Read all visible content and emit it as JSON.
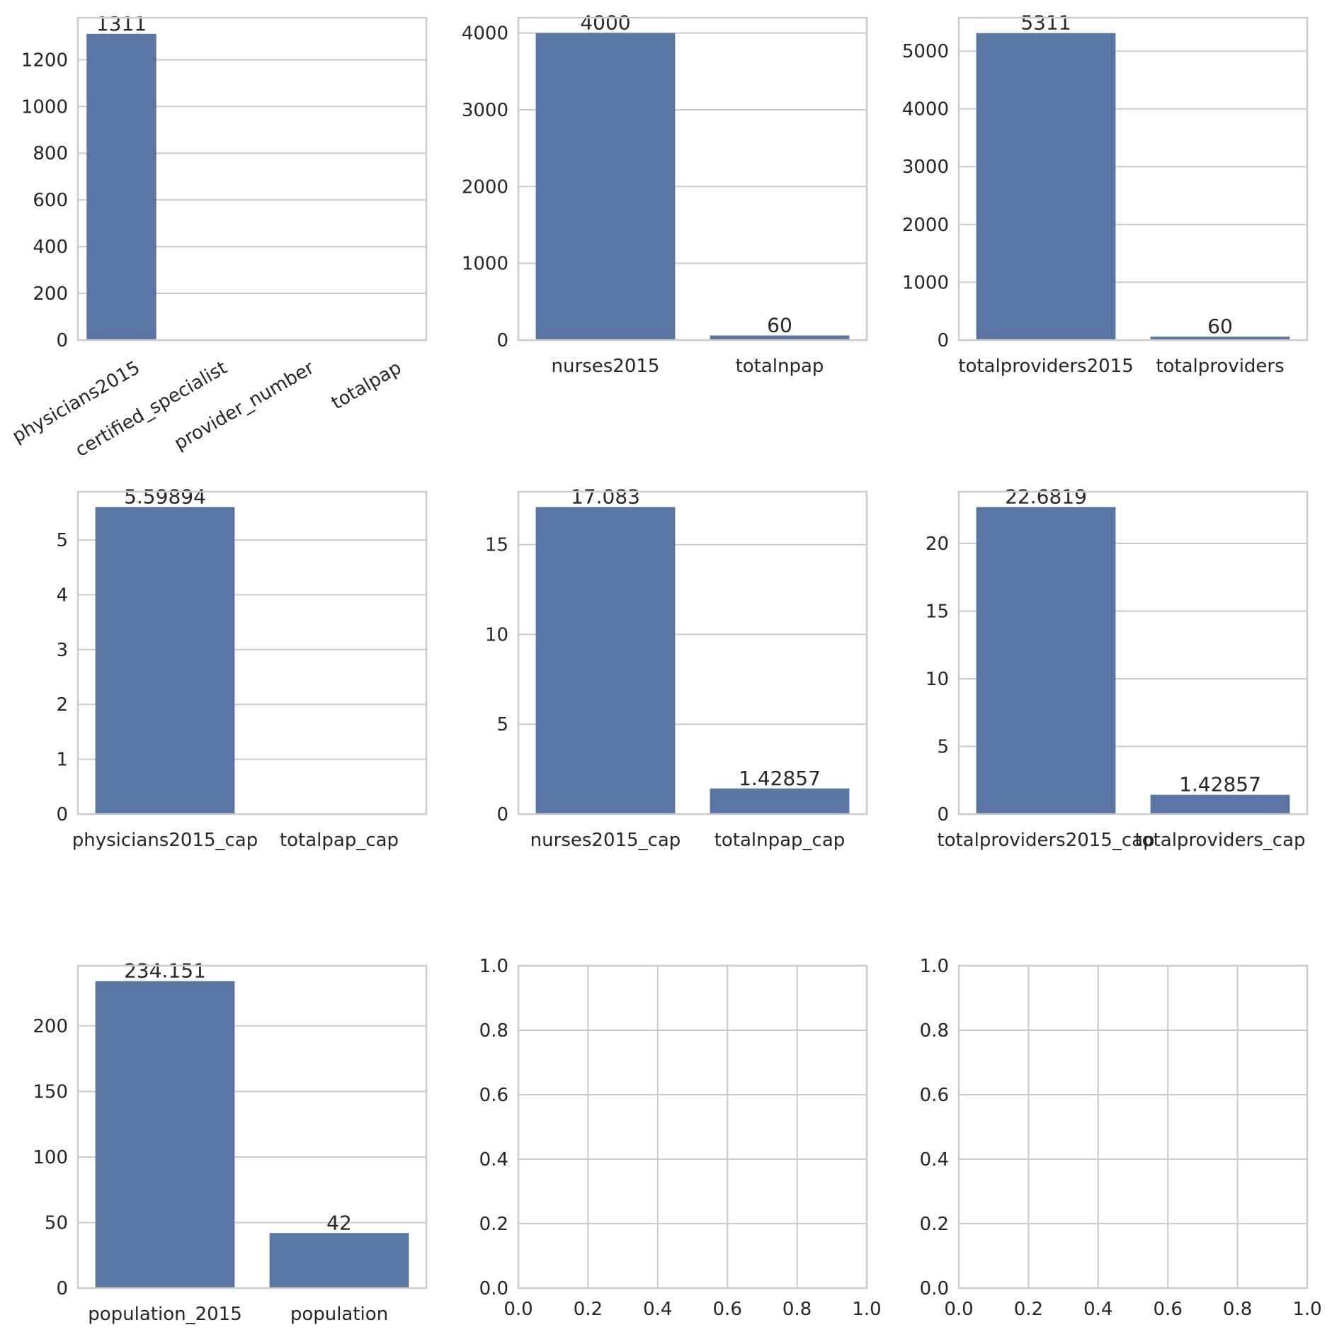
{
  "chart_data": [
    {
      "type": "bar",
      "categories": [
        "physicians2015",
        "certified_specialist",
        "provider_number",
        "totalpap"
      ],
      "values": [
        1311,
        0,
        0,
        0
      ],
      "bar_labels": [
        "1311",
        "",
        "",
        ""
      ],
      "ylim": [
        0,
        1380
      ],
      "yticks": [
        0,
        200,
        400,
        600,
        800,
        1000,
        1200
      ],
      "xtick_rotation": 30,
      "grid": "horizontal"
    },
    {
      "type": "bar",
      "categories": [
        "nurses2015",
        "totalnpap"
      ],
      "values": [
        4000,
        60
      ],
      "bar_labels": [
        "4000",
        "60"
      ],
      "ylim": [
        0,
        4200
      ],
      "yticks": [
        0,
        1000,
        2000,
        3000,
        4000
      ],
      "grid": "horizontal"
    },
    {
      "type": "bar",
      "categories": [
        "totalproviders2015",
        "totalproviders"
      ],
      "values": [
        5311,
        60
      ],
      "bar_labels": [
        "5311",
        "60"
      ],
      "ylim": [
        0,
        5577
      ],
      "yticks": [
        0,
        1000,
        2000,
        3000,
        4000,
        5000
      ],
      "grid": "horizontal"
    },
    {
      "type": "bar",
      "categories": [
        "physicians2015_cap",
        "totalpap_cap"
      ],
      "values": [
        5.59894,
        0
      ],
      "bar_labels": [
        "5.59894",
        ""
      ],
      "ylim": [
        0,
        5.88
      ],
      "yticks": [
        0,
        1,
        2,
        3,
        4,
        5
      ],
      "grid": "horizontal"
    },
    {
      "type": "bar",
      "categories": [
        "nurses2015_cap",
        "totalnpap_cap"
      ],
      "values": [
        17.083,
        1.42857
      ],
      "bar_labels": [
        "17.083",
        "1.42857"
      ],
      "ylim": [
        0,
        17.94
      ],
      "yticks": [
        0,
        5,
        10,
        15
      ],
      "grid": "horizontal"
    },
    {
      "type": "bar",
      "categories": [
        "totalproviders2015_cap",
        "totalproviders_cap"
      ],
      "values": [
        22.6819,
        1.42857
      ],
      "bar_labels": [
        "22.6819",
        "1.42857"
      ],
      "ylim": [
        0,
        23.82
      ],
      "yticks": [
        0,
        5,
        10,
        15,
        20
      ],
      "grid": "horizontal"
    },
    {
      "type": "bar",
      "categories": [
        "population_2015",
        "population"
      ],
      "values": [
        234.151,
        42
      ],
      "bar_labels": [
        "234.151",
        "42"
      ],
      "ylim": [
        0,
        245.9
      ],
      "yticks": [
        0,
        50,
        100,
        150,
        200
      ],
      "grid": "horizontal"
    },
    {
      "type": "empty",
      "xlim": [
        0,
        1
      ],
      "ylim": [
        0,
        1
      ],
      "xticks": [
        "0.0",
        "0.2",
        "0.4",
        "0.6",
        "0.8",
        "1.0"
      ],
      "yticks": [
        "0.0",
        "0.2",
        "0.4",
        "0.6",
        "0.8",
        "1.0"
      ],
      "grid": "both"
    },
    {
      "type": "empty",
      "xlim": [
        0,
        1
      ],
      "ylim": [
        0,
        1
      ],
      "xticks": [
        "0.0",
        "0.2",
        "0.4",
        "0.6",
        "0.8",
        "1.0"
      ],
      "yticks": [
        "0.0",
        "0.2",
        "0.4",
        "0.6",
        "0.8",
        "1.0"
      ],
      "grid": "both"
    }
  ],
  "colors": {
    "bar": "#5975a4",
    "grid": "#cccccc",
    "text": "#262626"
  }
}
